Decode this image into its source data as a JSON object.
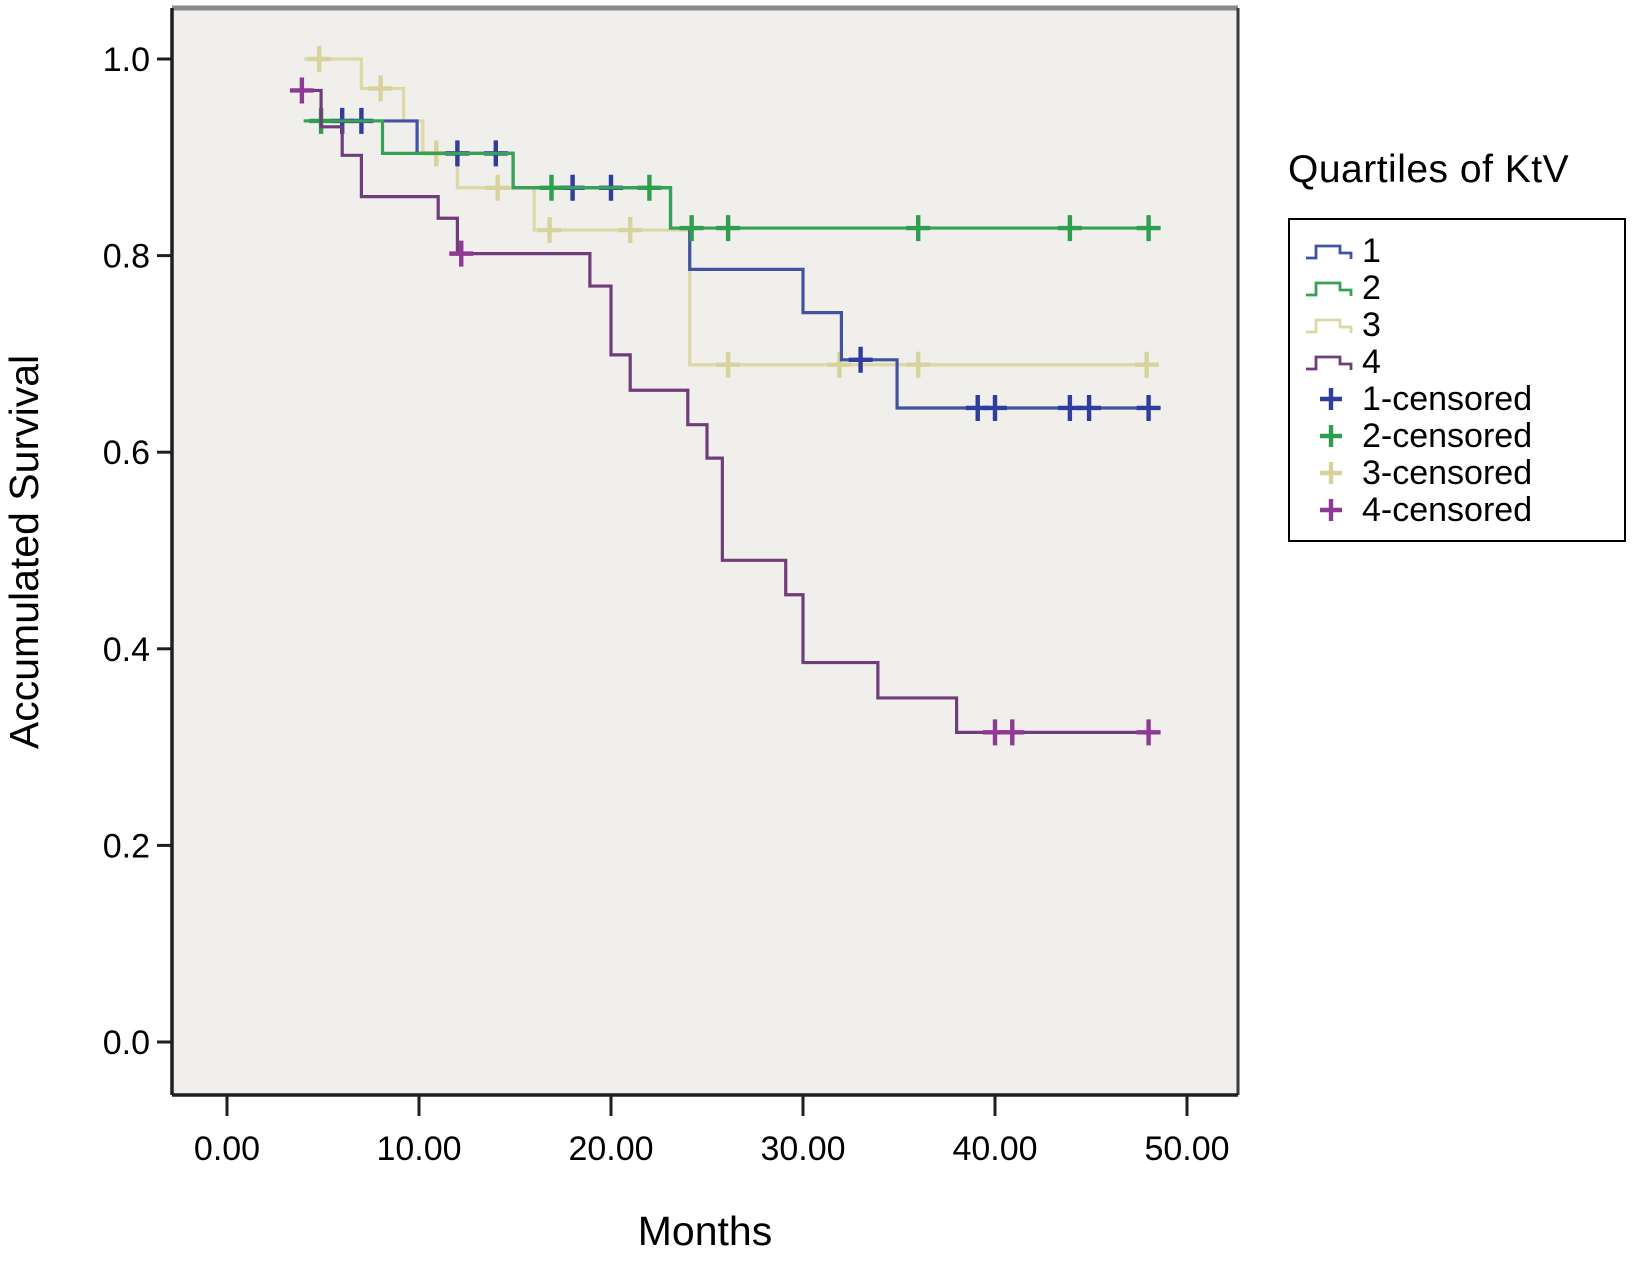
{
  "figure": {
    "background": "#ffffff"
  },
  "plot": {
    "background": "#f0efec",
    "frame_color": "#1f1f1f",
    "top_border_color": "#8a8a8a",
    "right_border_color": "#3a3a3a"
  },
  "y_axis": {
    "title": "Accumulated Survival",
    "tick_labels": [
      "1.0",
      "0.8",
      "0.6",
      "0.4",
      "0.2",
      "0.0"
    ],
    "tick_values": [
      1.0,
      0.8,
      0.6,
      0.4,
      0.2,
      0.0
    ]
  },
  "x_axis": {
    "title": "Months",
    "tick_labels": [
      "0.00",
      "10.00",
      "20.00",
      "30.00",
      "40.00",
      "50.00"
    ],
    "tick_values": [
      0,
      10,
      20,
      30,
      40,
      50
    ]
  },
  "legend": {
    "title": "Quartiles of KtV",
    "entries": [
      {
        "label": "1",
        "type": "line",
        "color": "#4353a4"
      },
      {
        "label": "2",
        "type": "line",
        "color": "#36a257"
      },
      {
        "label": "3",
        "type": "line",
        "color": "#dcd9a4"
      },
      {
        "label": "4",
        "type": "line",
        "color": "#6f3d7a"
      },
      {
        "label": "1-censored",
        "type": "censor",
        "color": "#2e3d9e"
      },
      {
        "label": "2-censored",
        "type": "censor",
        "color": "#2f9e4e"
      },
      {
        "label": "3-censored",
        "type": "censor",
        "color": "#d7d39b"
      },
      {
        "label": "4-censored",
        "type": "censor",
        "color": "#8e3a94"
      }
    ]
  },
  "chart_data": {
    "type": "line",
    "subtype": "kaplan_meier_step",
    "title": "",
    "xlabel": "Months",
    "ylabel": "Accumulated Survival",
    "x_range": [
      0,
      52.5
    ],
    "y_range": [
      0.0,
      1.05
    ],
    "grid": false,
    "legend_position": "right",
    "series": [
      {
        "name": "3",
        "line_color": "#dcd9a4",
        "censor_color": "#d7d39b",
        "end_t": 48.2,
        "points": [
          [
            4.0,
            1.0
          ],
          [
            7.0,
            0.97
          ],
          [
            9.2,
            0.937
          ],
          [
            10.2,
            0.904
          ],
          [
            12.0,
            0.869
          ],
          [
            16.0,
            0.826
          ],
          [
            24.1,
            0.689
          ]
        ],
        "censors": [
          [
            4.8,
            1.0
          ],
          [
            8.0,
            0.97
          ],
          [
            10.9,
            0.904
          ],
          [
            14.1,
            0.869
          ],
          [
            16.8,
            0.826
          ],
          [
            21.0,
            0.826
          ],
          [
            26.1,
            0.689
          ],
          [
            31.9,
            0.689
          ],
          [
            36.0,
            0.689
          ],
          [
            47.9,
            0.689
          ]
        ]
      },
      {
        "name": "1",
        "line_color": "#4353a4",
        "censor_color": "#2e3d9e",
        "end_t": 48.2,
        "points": [
          [
            4.0,
            0.937
          ],
          [
            9.9,
            0.904
          ],
          [
            14.9,
            0.869
          ],
          [
            23.1,
            0.828
          ],
          [
            24.1,
            0.786
          ],
          [
            30.0,
            0.742
          ],
          [
            32.0,
            0.694
          ],
          [
            34.9,
            0.645
          ]
        ],
        "censors": [
          [
            6.0,
            0.937
          ],
          [
            7.0,
            0.937
          ],
          [
            12.0,
            0.904
          ],
          [
            14.0,
            0.904
          ],
          [
            18.0,
            0.869
          ],
          [
            20.0,
            0.869
          ],
          [
            33.0,
            0.694
          ],
          [
            39.1,
            0.645
          ],
          [
            40.0,
            0.645
          ],
          [
            43.9,
            0.645
          ],
          [
            44.9,
            0.645
          ],
          [
            48.0,
            0.645
          ]
        ]
      },
      {
        "name": "2",
        "line_color": "#36a257",
        "censor_color": "#2f9e4e",
        "end_t": 48.2,
        "points": [
          [
            4.0,
            0.937
          ],
          [
            8.1,
            0.904
          ],
          [
            14.9,
            0.869
          ],
          [
            23.1,
            0.828
          ]
        ],
        "censors": [
          [
            4.9,
            0.937
          ],
          [
            16.9,
            0.869
          ],
          [
            22.0,
            0.869
          ],
          [
            24.2,
            0.828
          ],
          [
            26.1,
            0.828
          ],
          [
            36.0,
            0.828
          ],
          [
            43.9,
            0.828
          ],
          [
            48.0,
            0.828
          ]
        ]
      },
      {
        "name": "4",
        "line_color": "#6f3d7a",
        "censor_color": "#8e3a94",
        "end_t": 48.2,
        "points": [
          [
            3.5,
            0.968
          ],
          [
            4.9,
            0.931
          ],
          [
            6.0,
            0.902
          ],
          [
            7.0,
            0.86
          ],
          [
            11.0,
            0.838
          ],
          [
            12.0,
            0.802
          ],
          [
            18.9,
            0.769
          ],
          [
            20.0,
            0.699
          ],
          [
            21.0,
            0.663
          ],
          [
            24.0,
            0.628
          ],
          [
            25.0,
            0.594
          ],
          [
            25.8,
            0.49
          ],
          [
            29.1,
            0.455
          ],
          [
            30.0,
            0.386
          ],
          [
            33.9,
            0.35
          ],
          [
            38.0,
            0.315
          ]
        ],
        "censors": [
          [
            3.9,
            0.968
          ],
          [
            12.2,
            0.802
          ],
          [
            40.0,
            0.315
          ],
          [
            40.9,
            0.315
          ],
          [
            48.0,
            0.315
          ]
        ]
      }
    ]
  }
}
